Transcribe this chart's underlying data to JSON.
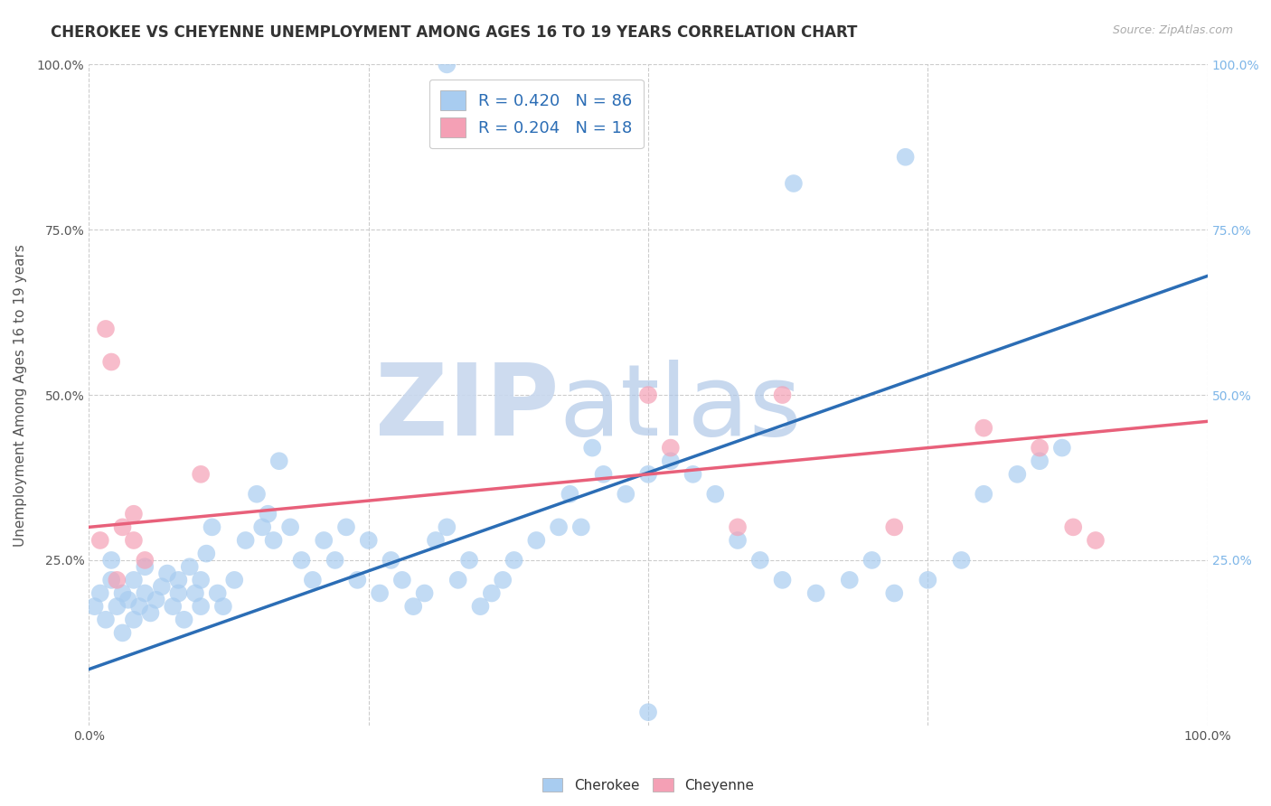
{
  "title": "CHEROKEE VS CHEYENNE UNEMPLOYMENT AMONG AGES 16 TO 19 YEARS CORRELATION CHART",
  "source": "Source: ZipAtlas.com",
  "ylabel": "Unemployment Among Ages 16 to 19 years",
  "xlim": [
    0,
    1.0
  ],
  "ylim": [
    0,
    1.0
  ],
  "xticks": [
    0.0,
    0.1,
    0.2,
    0.3,
    0.4,
    0.5,
    0.6,
    0.7,
    0.8,
    0.9,
    1.0
  ],
  "yticks": [
    0.0,
    0.25,
    0.5,
    0.75,
    1.0
  ],
  "xticklabels": [
    "0.0%",
    "",
    "",
    "",
    "",
    "",
    "",
    "",
    "",
    "",
    "100.0%"
  ],
  "yticklabels": [
    "",
    "25.0%",
    "50.0%",
    "75.0%",
    "100.0%"
  ],
  "right_yticklabels": [
    "",
    "25.0%",
    "50.0%",
    "75.0%",
    "100.0%"
  ],
  "cherokee_color": "#A8CCF0",
  "cheyenne_color": "#F4A0B5",
  "cherokee_line_color": "#2B6DB5",
  "cheyenne_line_color": "#E8607A",
  "cherokee_R": 0.42,
  "cherokee_N": 86,
  "cheyenne_R": 0.204,
  "cheyenne_N": 18,
  "background_color": "#FFFFFF",
  "grid_color": "#CCCCCC",
  "watermark": "ZIPatlas",
  "watermark_color": "#DDEEFF",
  "title_fontsize": 12,
  "axis_label_fontsize": 11,
  "tick_fontsize": 10,
  "cherokee_x": [
    0.005,
    0.01,
    0.015,
    0.02,
    0.02,
    0.025,
    0.03,
    0.03,
    0.035,
    0.04,
    0.04,
    0.045,
    0.05,
    0.05,
    0.055,
    0.06,
    0.065,
    0.07,
    0.075,
    0.08,
    0.08,
    0.085,
    0.09,
    0.095,
    0.1,
    0.1,
    0.105,
    0.11,
    0.115,
    0.12,
    0.13,
    0.14,
    0.15,
    0.155,
    0.16,
    0.165,
    0.17,
    0.18,
    0.19,
    0.2,
    0.21,
    0.22,
    0.23,
    0.24,
    0.25,
    0.26,
    0.27,
    0.28,
    0.29,
    0.3,
    0.31,
    0.32,
    0.33,
    0.34,
    0.35,
    0.36,
    0.37,
    0.38,
    0.4,
    0.42,
    0.43,
    0.44,
    0.45,
    0.46,
    0.48,
    0.5,
    0.52,
    0.54,
    0.56,
    0.58,
    0.6,
    0.62,
    0.65,
    0.68,
    0.7,
    0.72,
    0.75,
    0.78,
    0.8,
    0.83,
    0.85,
    0.87,
    0.32,
    0.5,
    0.63,
    0.73
  ],
  "cherokee_y": [
    0.18,
    0.2,
    0.16,
    0.22,
    0.25,
    0.18,
    0.2,
    0.14,
    0.19,
    0.22,
    0.16,
    0.18,
    0.2,
    0.24,
    0.17,
    0.19,
    0.21,
    0.23,
    0.18,
    0.2,
    0.22,
    0.16,
    0.24,
    0.2,
    0.18,
    0.22,
    0.26,
    0.3,
    0.2,
    0.18,
    0.22,
    0.28,
    0.35,
    0.3,
    0.32,
    0.28,
    0.4,
    0.3,
    0.25,
    0.22,
    0.28,
    0.25,
    0.3,
    0.22,
    0.28,
    0.2,
    0.25,
    0.22,
    0.18,
    0.2,
    0.28,
    0.3,
    0.22,
    0.25,
    0.18,
    0.2,
    0.22,
    0.25,
    0.28,
    0.3,
    0.35,
    0.3,
    0.42,
    0.38,
    0.35,
    0.38,
    0.4,
    0.38,
    0.35,
    0.28,
    0.25,
    0.22,
    0.2,
    0.22,
    0.25,
    0.2,
    0.22,
    0.25,
    0.35,
    0.38,
    0.4,
    0.42,
    1.0,
    0.02,
    0.82,
    0.86
  ],
  "cheyenne_x": [
    0.01,
    0.015,
    0.02,
    0.025,
    0.03,
    0.04,
    0.04,
    0.05,
    0.1,
    0.5,
    0.52,
    0.58,
    0.62,
    0.72,
    0.8,
    0.85,
    0.88,
    0.9
  ],
  "cheyenne_y": [
    0.28,
    0.6,
    0.55,
    0.22,
    0.3,
    0.32,
    0.28,
    0.25,
    0.38,
    0.5,
    0.42,
    0.3,
    0.5,
    0.3,
    0.45,
    0.42,
    0.3,
    0.28
  ],
  "cherokee_line_x": [
    0.0,
    1.0
  ],
  "cherokee_line_y": [
    0.085,
    0.68
  ],
  "cheyenne_line_x": [
    0.0,
    1.0
  ],
  "cheyenne_line_y": [
    0.3,
    0.46
  ]
}
